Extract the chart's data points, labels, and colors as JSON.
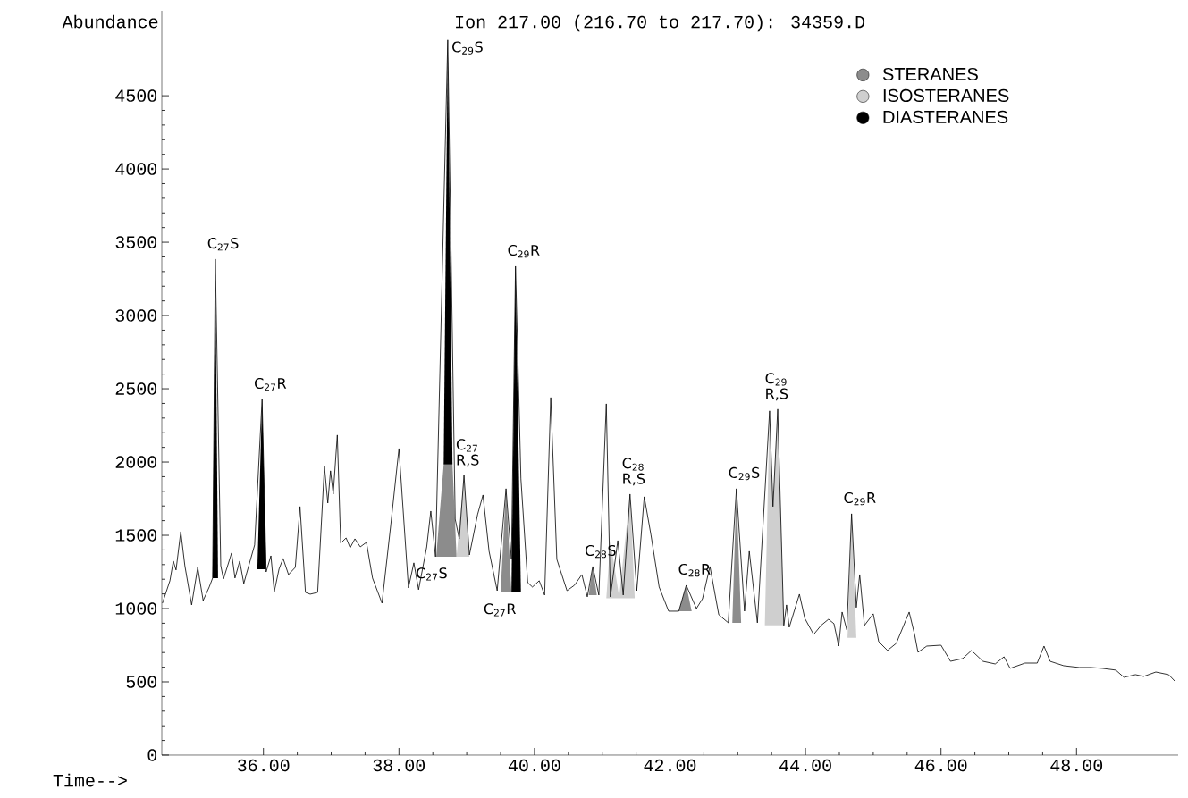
{
  "chart_data": {
    "type": "line",
    "title": "Ion 217.00 (216.70 to 217.70): 34359.D",
    "ylabel": "Abundance",
    "xlabel": "Time-->",
    "xlim": [
      34.5,
      49.5
    ],
    "ylim": [
      0,
      5080
    ],
    "xticks": [
      {
        "value": 36,
        "label": "36.00"
      },
      {
        "value": 38,
        "label": "38.00"
      },
      {
        "value": 40,
        "label": "40.00"
      },
      {
        "value": 42,
        "label": "42.00"
      },
      {
        "value": 44,
        "label": "44.00"
      },
      {
        "value": 46,
        "label": "46.00"
      },
      {
        "value": 48,
        "label": "48.00"
      }
    ],
    "yticks": [
      0,
      500,
      1000,
      1500,
      2000,
      2500,
      3000,
      3500,
      4000,
      4500
    ],
    "legend": "top right",
    "series": [
      {
        "color": "#000000",
        "x": [
          34.51,
          34.62,
          34.67,
          34.71,
          34.78,
          34.84,
          34.94,
          35.03,
          35.11,
          35.2,
          35.25,
          35.29,
          35.37,
          35.41,
          35.53,
          35.58,
          35.65,
          35.71,
          35.75,
          35.87,
          35.98,
          36.04,
          36.11,
          36.16,
          36.23,
          36.29,
          36.37,
          36.47,
          36.54,
          36.62,
          36.69,
          36.8,
          36.9,
          36.95,
          36.99,
          37.03,
          37.09,
          37.14,
          37.22,
          37.28,
          37.35,
          37.43,
          37.52,
          37.61,
          37.75,
          37.88,
          38.0,
          38.14,
          38.22,
          38.29,
          38.41,
          38.47,
          38.54,
          38.72,
          38.83,
          38.89,
          38.96,
          39.04,
          39.16,
          39.24,
          39.33,
          39.45,
          39.58,
          39.66,
          39.72,
          39.8,
          39.9,
          39.97,
          40.07,
          40.15,
          40.24,
          40.33,
          40.48,
          40.59,
          40.7,
          40.78,
          40.86,
          40.95,
          41.06,
          41.12,
          41.23,
          41.31,
          41.41,
          41.51,
          41.62,
          41.72,
          41.84,
          41.98,
          42.13,
          42.24,
          42.39,
          42.48,
          42.59,
          42.72,
          42.86,
          42.98,
          43.1,
          43.17,
          43.29,
          43.47,
          43.52,
          43.59,
          43.68,
          43.72,
          43.76,
          43.91,
          43.99,
          44.12,
          44.23,
          44.34,
          44.42,
          44.49,
          44.54,
          44.61,
          44.68,
          44.75,
          44.8,
          44.87,
          45.0,
          45.08,
          45.21,
          45.34,
          45.53,
          45.61,
          45.66,
          45.79,
          46.0,
          46.14,
          46.32,
          46.45,
          46.62,
          46.8,
          46.93,
          47.02,
          47.24,
          47.42,
          47.52,
          47.61,
          47.81,
          48.04,
          48.21,
          48.38,
          48.58,
          48.7,
          48.87,
          48.99,
          49.17,
          49.36,
          49.46
        ],
        "values": [
          1037,
          1190,
          1324,
          1263,
          1525,
          1293,
          1025,
          1281,
          1055,
          1147,
          1208,
          3385,
          1293,
          1202,
          1379,
          1208,
          1324,
          1171,
          1238,
          1434,
          2428,
          1250,
          1360,
          1116,
          1269,
          1342,
          1232,
          1281,
          1696,
          1110,
          1098,
          1110,
          1970,
          1720,
          1940,
          1781,
          2184,
          1446,
          1482,
          1415,
          1476,
          1421,
          1452,
          1208,
          1037,
          1574,
          2092,
          1141,
          1312,
          1129,
          1421,
          1665,
          1354,
          4880,
          1610,
          1476,
          1909,
          1366,
          1641,
          1775,
          1391,
          1122,
          1818,
          1336,
          3336,
          1885,
          1177,
          1147,
          1190,
          1092,
          2440,
          1336,
          1122,
          1159,
          1232,
          1080,
          1287,
          1092,
          2397,
          1080,
          1464,
          1092,
          1781,
          1122,
          1763,
          1501,
          1147,
          982,
          982,
          1159,
          1000,
          1067,
          1287,
          958,
          903,
          1818,
          982,
          1391,
          903,
          2349,
          1696,
          2361,
          885,
          1025,
          872,
          1098,
          933,
          823,
          885,
          927,
          897,
          744,
          976,
          854,
          1647,
          1007,
          1232,
          885,
          964,
          775,
          714,
          763,
          976,
          823,
          702,
          744,
          750,
          640,
          659,
          714,
          640,
          622,
          671,
          592,
          628,
          628,
          744,
          640,
          610,
          598,
          598,
          592,
          580,
          531,
          549,
          537,
          567,
          549,
          500
        ]
      },
      {
        "type": "area",
        "name": "STERANES",
        "color": "#8c8c8c",
        "x": [
          38.55,
          38.66,
          38.79,
          38.85,
          null,
          39.5,
          39.58,
          39.66,
          null,
          40.8,
          40.86,
          40.92,
          null,
          42.13,
          42.24,
          42.32,
          null,
          42.92,
          42.98,
          43.05
        ],
        "values": [
          1354,
          1983,
          1983,
          1354,
          null,
          1110,
          1818,
          1110,
          null,
          1092,
          1287,
          1092,
          null,
          982,
          1159,
          982,
          null,
          903,
          1818,
          903
        ]
      },
      {
        "type": "area",
        "name": "ISOSTERANES",
        "color": "#cfcfcf",
        "x": [
          38.85,
          38.96,
          39.04,
          null,
          41.06,
          41.12,
          41.25,
          41.41,
          41.48,
          null,
          43.4,
          43.47,
          43.52,
          43.59,
          43.68,
          null,
          44.62,
          44.68,
          44.75
        ],
        "values": [
          1354,
          1909,
          1354,
          null,
          1070,
          1464,
          1080,
          1781,
          1070,
          null,
          885,
          2349,
          1696,
          2361,
          885,
          null,
          800,
          1647,
          800
        ]
      },
      {
        "type": "area",
        "name": "DIASTERANES",
        "color": "#000000",
        "x": [
          35.25,
          35.29,
          35.33,
          null,
          35.91,
          35.98,
          36.04,
          null,
          38.66,
          38.72,
          38.79,
          null,
          39.66,
          39.72,
          39.8
        ],
        "values": [
          1208,
          3385,
          1208,
          null,
          1269,
          2428,
          1269,
          null,
          1983,
          4880,
          1983,
          null,
          1110,
          3336,
          1110
        ]
      }
    ],
    "annotations": [
      {
        "text": "C$_{27}$S",
        "x": 35.29,
        "y": 3385
      },
      {
        "text": "C$_{27}$R",
        "x": 35.98,
        "y": 2428
      },
      {
        "text": "C$_{29}$S",
        "x": 38.72,
        "y": 4880
      },
      {
        "text": "C$_{29}$R",
        "x": 39.72,
        "y": 3336
      },
      {
        "text": "C$_{27}$ R,S",
        "x": 38.96,
        "y": 1909
      },
      {
        "text": "C$_{27}$S",
        "x": 38.6,
        "y": 1354
      },
      {
        "text": "C$_{27}$R",
        "x": 39.6,
        "y": 1110
      },
      {
        "text": "C$_{28}$S",
        "x": 40.86,
        "y": 1287
      },
      {
        "text": "C$_{28}$ R,S",
        "x": 41.41,
        "y": 1781
      },
      {
        "text": "C$_{28}$R",
        "x": 42.24,
        "y": 1159
      },
      {
        "text": "C$_{29}$S",
        "x": 42.98,
        "y": 1818
      },
      {
        "text": "C$_{29}$ R,S",
        "x": 43.52,
        "y": 2361
      },
      {
        "text": "C$_{29}$R",
        "x": 44.68,
        "y": 1647
      }
    ]
  }
}
